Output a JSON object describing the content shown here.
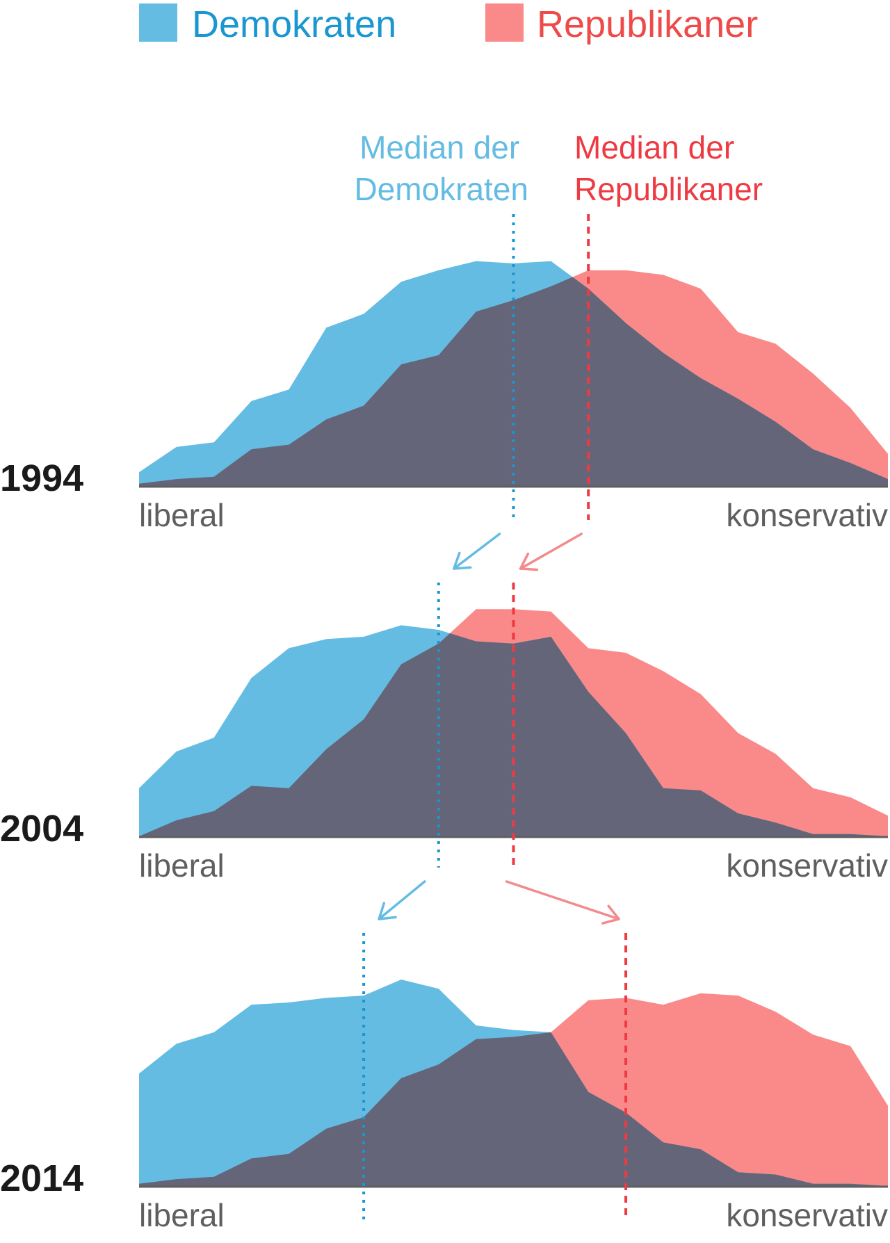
{
  "chart_data": {
    "type": "area",
    "legend": {
      "placement": "top",
      "entries": [
        {
          "key": "dem",
          "label": "Demokraten",
          "swatch": "#65bce3",
          "text_color": "#1a96d0"
        },
        {
          "key": "rep",
          "label": "Republikaner",
          "swatch": "#fa8a8a",
          "text_color": "#ee4a4a"
        }
      ]
    },
    "colors": {
      "dem": "#65bce3",
      "rep": "#fa8a8a",
      "overlap": "#656579",
      "dem_median": "#1a96d0",
      "rep_median": "#ee3a43",
      "dem_arrow": "#65bce3",
      "rep_arrow": "#f28b8b",
      "axis": "#5f5f5f"
    },
    "median_labels": {
      "dem": [
        "Median der",
        "Demokraten"
      ],
      "rep": [
        "Median der",
        "Republikaner"
      ]
    },
    "xlabel_left": "liberal",
    "xlabel_right": "konservativ",
    "x": [
      0,
      0.05,
      0.1,
      0.15,
      0.2,
      0.25,
      0.3,
      0.35,
      0.4,
      0.45,
      0.5,
      0.55,
      0.6,
      0.65,
      0.7,
      0.75,
      0.8,
      0.85,
      0.9,
      0.95,
      1
    ],
    "xlim": [
      0,
      1
    ],
    "ylim": [
      0,
      1
    ],
    "panels": [
      {
        "year": "1994",
        "dem": [
          0.06,
          0.17,
          0.19,
          0.37,
          0.42,
          0.69,
          0.75,
          0.89,
          0.94,
          0.98,
          0.97,
          0.98,
          0.86,
          0.71,
          0.58,
          0.47,
          0.38,
          0.28,
          0.16,
          0.1,
          0.03
        ],
        "rep": [
          0.01,
          0.03,
          0.04,
          0.16,
          0.18,
          0.29,
          0.35,
          0.53,
          0.57,
          0.76,
          0.81,
          0.87,
          0.94,
          0.94,
          0.92,
          0.86,
          0.67,
          0.62,
          0.49,
          0.34,
          0.14
        ],
        "dem_median": 0.5,
        "rep_median": 0.6
      },
      {
        "year": "2004",
        "dem": [
          0.21,
          0.37,
          0.43,
          0.69,
          0.82,
          0.86,
          0.87,
          0.92,
          0.9,
          0.85,
          0.84,
          0.87,
          0.63,
          0.45,
          0.21,
          0.2,
          0.1,
          0.06,
          0.01,
          0.01,
          0.0
        ],
        "rep": [
          0.0,
          0.07,
          0.11,
          0.22,
          0.21,
          0.38,
          0.51,
          0.75,
          0.84,
          0.99,
          0.99,
          0.98,
          0.82,
          0.8,
          0.72,
          0.62,
          0.45,
          0.36,
          0.21,
          0.17,
          0.09
        ],
        "dem_median": 0.4,
        "rep_median": 0.5
      },
      {
        "year": "2014",
        "dem": [
          0.49,
          0.62,
          0.67,
          0.79,
          0.8,
          0.82,
          0.83,
          0.9,
          0.86,
          0.7,
          0.68,
          0.67,
          0.41,
          0.32,
          0.19,
          0.16,
          0.06,
          0.05,
          0.01,
          0.01,
          0.0
        ],
        "rep": [
          0.01,
          0.03,
          0.04,
          0.12,
          0.14,
          0.25,
          0.3,
          0.47,
          0.53,
          0.64,
          0.65,
          0.67,
          0.81,
          0.82,
          0.79,
          0.84,
          0.83,
          0.76,
          0.66,
          0.61,
          0.35
        ],
        "dem_median": 0.3,
        "rep_median": 0.65
      }
    ]
  }
}
